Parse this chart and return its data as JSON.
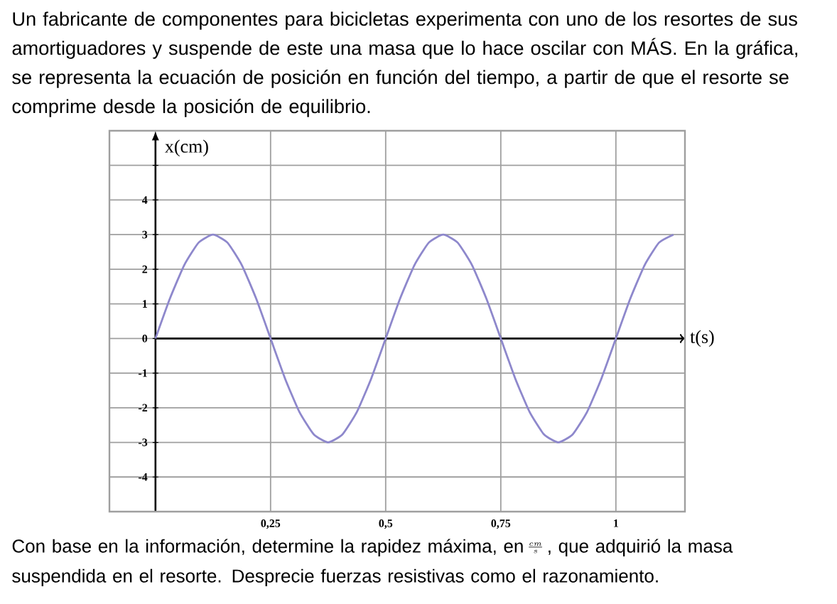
{
  "chart_data": {
    "type": "line",
    "title": "Un fabricante de componentes para bicicletas experimenta con uno de los resortes de sus amortiguadores y suspende de este una masa que lo hace oscilar con MÁS. En la gráfica, se representa la ecuación de posición en función del tiempo, a partir de que el resorte se comprime desde la posición de equilibrio.",
    "annotations": [
      "Con base en la información, determine la rapidez máxima, en",
      "\\frac{cm}{s}",
      ", que adquirió la masa suspendida en el resorte. Desprecie fuerzas resistivas como el razonamiento."
    ],
    "xlabel": "t(s)",
    "ylabel": "x(cm)",
    "x": [
      0,
      0.03125,
      0.0625,
      0.09375,
      0.125,
      0.15625,
      0.1875,
      0.21875,
      0.25,
      0.28125,
      0.3125,
      0.34375,
      0.375,
      0.40625,
      0.4375,
      0.46875,
      0.5,
      0.53125,
      0.5625,
      0.59375,
      0.625,
      0.65625,
      0.6875,
      0.71875,
      0.75,
      0.78125,
      0.8125,
      0.84375,
      0.875,
      0.90625,
      0.9375,
      0.96875,
      1,
      1.03125,
      1.0625,
      1.09375,
      1.125
    ],
    "series": [
      {
        "color": "#8e88cc",
        "values": [
          0,
          1.15,
          2.12,
          2.77,
          3,
          2.77,
          2.12,
          1.15,
          0,
          -1.15,
          -2.12,
          -2.77,
          -3,
          -2.77,
          -2.12,
          -1.15,
          0,
          1.15,
          2.12,
          2.77,
          3,
          2.77,
          2.12,
          1.15,
          0,
          -1.15,
          -2.12,
          -2.77,
          -3,
          -2.77,
          -2.12,
          -1.15,
          0,
          1.15,
          2.12,
          2.77,
          3
        ]
      }
    ],
    "xlim": [
      -0.1,
      1.15
    ],
    "ylim": [
      -5,
      6
    ],
    "xticks": [
      {
        "value": 0.25,
        "label": "0,25"
      },
      {
        "value": 0.5,
        "label": "0,5"
      },
      {
        "value": 0.75,
        "label": "0,75"
      },
      1
    ],
    "yticks": [
      -4,
      -3,
      -2,
      -1,
      0,
      1,
      2,
      3,
      4,
      {
        "value": 5,
        "label": null
      }
    ],
    "grid": true
  }
}
